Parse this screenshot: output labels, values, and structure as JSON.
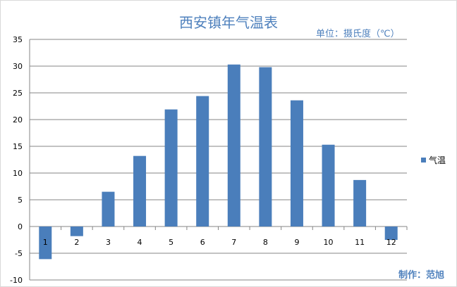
{
  "header": {
    "title": "西安镇年气温表",
    "unit": "单位：摄氏度（℃）"
  },
  "footer": {
    "maker": "制作：范旭"
  },
  "colors": {
    "bar": "#4a7ebb",
    "grid": "#868686",
    "title": "#4f81bd"
  },
  "chart_data": {
    "type": "bar",
    "title": "西安镇年气温表",
    "categories": [
      "1",
      "2",
      "3",
      "4",
      "5",
      "6",
      "7",
      "8",
      "9",
      "10",
      "11",
      "12"
    ],
    "series": [
      {
        "name": "气温",
        "values": [
          -6.1,
          -1.8,
          6.5,
          13.2,
          21.9,
          24.4,
          30.3,
          29.8,
          23.6,
          15.3,
          8.7,
          -2.5
        ]
      }
    ],
    "yticks": [
      "35",
      "30",
      "25",
      "20",
      "15",
      "10",
      "5",
      "0",
      "-5",
      "-10"
    ],
    "ylim": [
      -10,
      35
    ],
    "grid": true,
    "legend_position": "right"
  }
}
